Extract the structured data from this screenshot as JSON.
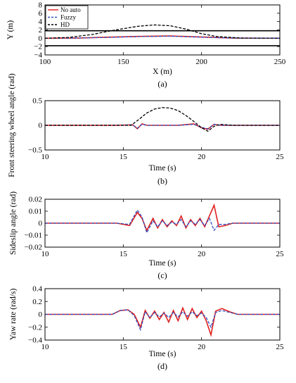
{
  "chart_data": [
    {
      "type": "line",
      "caption": "(a)",
      "xlabel": "X (m)",
      "ylabel": "Y (m)",
      "xlim": [
        100,
        250
      ],
      "ylim": [
        -4,
        8
      ],
      "xticks": [
        100,
        150,
        200,
        250
      ],
      "yticks": [
        8,
        6,
        4,
        2,
        0,
        -2,
        -4
      ],
      "yticklabels": [
        "8",
        "6",
        "4",
        "2",
        "0",
        "−2",
        "−4"
      ],
      "legend": {
        "placement": "top-left",
        "entries": [
          "No auto",
          "Fuzzy",
          "HD"
        ]
      },
      "hlines": [
        1.8,
        -1.8
      ],
      "series": [
        {
          "name": "No auto",
          "color": "#e02020",
          "dash": "solid",
          "x": [
            100,
            120,
            140,
            160,
            180,
            200,
            220,
            250
          ],
          "y": [
            0,
            0.05,
            0.25,
            0.45,
            0.55,
            0.3,
            0.05,
            0
          ]
        },
        {
          "name": "Fuzzy",
          "color": "#3050c0",
          "dash": "dashed",
          "x": [
            100,
            120,
            140,
            160,
            180,
            200,
            220,
            250
          ],
          "y": [
            0,
            0.05,
            0.2,
            0.4,
            0.5,
            0.25,
            0.05,
            0
          ]
        },
        {
          "name": "HD",
          "color": "#000000",
          "dash": "dashed",
          "x": [
            100,
            115,
            130,
            145,
            160,
            170,
            180,
            190,
            200,
            210,
            225,
            250
          ],
          "y": [
            0,
            0.2,
            0.9,
            2.0,
            2.9,
            3.2,
            3.0,
            2.2,
            1.1,
            0.4,
            0.05,
            0
          ]
        }
      ]
    },
    {
      "type": "line",
      "caption": "(b)",
      "xlabel": "Time (s)",
      "ylabel": "Front steering wheel angle (rad)",
      "xlim": [
        10,
        25
      ],
      "ylim": [
        -0.5,
        0.5
      ],
      "xticks": [
        10,
        15,
        20,
        25
      ],
      "yticks": [
        0.5,
        0,
        -0.5
      ],
      "yticklabels": [
        "0.5",
        "0",
        "−0.5"
      ],
      "series": [
        {
          "name": "No auto",
          "color": "#e02020",
          "dash": "solid",
          "x": [
            10,
            14.5,
            15.6,
            15.9,
            16.2,
            16.5,
            18.5,
            19.5,
            20,
            20.4,
            20.8,
            21.2,
            25
          ],
          "y": [
            0,
            0,
            0.01,
            -0.07,
            0.03,
            0,
            0,
            0.03,
            -0.05,
            -0.08,
            0.02,
            0,
            0
          ]
        },
        {
          "name": "Fuzzy",
          "color": "#3050c0",
          "dash": "dashed",
          "x": [
            10,
            14.5,
            15.6,
            15.9,
            16.2,
            16.5,
            18.5,
            19.5,
            20,
            20.4,
            20.8,
            21.2,
            25
          ],
          "y": [
            0,
            0,
            0.01,
            -0.06,
            0.02,
            0,
            0,
            0.02,
            -0.04,
            -0.07,
            0.02,
            0,
            0
          ]
        },
        {
          "name": "HD",
          "color": "#000000",
          "dash": "dashed",
          "x": [
            10,
            15.5,
            16.0,
            16.5,
            17.0,
            17.5,
            18.0,
            18.5,
            19.0,
            19.5,
            20.0,
            20.4,
            20.8,
            21.2,
            22,
            25
          ],
          "y": [
            0,
            0,
            0.12,
            0.25,
            0.33,
            0.36,
            0.35,
            0.3,
            0.2,
            0.08,
            -0.05,
            -0.12,
            -0.02,
            0.02,
            0,
            0
          ]
        }
      ]
    },
    {
      "type": "line",
      "caption": "(c)",
      "xlabel": "Time (s)",
      "ylabel": "Sideslip angle (rad)",
      "xlim": [
        10,
        25
      ],
      "ylim": [
        -0.02,
        0.02
      ],
      "xticks": [
        10,
        15,
        20,
        25
      ],
      "yticks": [
        0.02,
        0.01,
        0,
        -0.01,
        -0.02
      ],
      "yticklabels": [
        "0.02",
        "0.01",
        "0",
        "−0.01",
        "−0.02"
      ],
      "series": [
        {
          "name": "No auto",
          "color": "#e02020",
          "dash": "solid",
          "x": [
            10,
            14.6,
            15.4,
            15.9,
            16.2,
            16.5,
            16.9,
            17.2,
            17.5,
            17.8,
            18.1,
            18.4,
            18.7,
            19.0,
            19.3,
            19.6,
            19.9,
            20.2,
            20.5,
            20.8,
            21.1,
            21.5,
            22,
            25
          ],
          "y": [
            0,
            0,
            -0.002,
            0.009,
            0.004,
            -0.006,
            0.004,
            -0.004,
            0.003,
            -0.003,
            0.002,
            -0.002,
            0.006,
            -0.004,
            0.003,
            -0.002,
            0.004,
            -0.003,
            0.006,
            0.015,
            -0.003,
            -0.002,
            0,
            0
          ]
        },
        {
          "name": "Fuzzy",
          "color": "#3050c0",
          "dash": "dashed",
          "x": [
            10,
            14.6,
            15.4,
            15.9,
            16.2,
            16.5,
            16.9,
            17.2,
            17.5,
            17.8,
            18.1,
            18.4,
            18.7,
            19.0,
            19.3,
            19.6,
            19.9,
            20.2,
            20.5,
            20.8,
            21.1,
            21.5,
            22,
            25
          ],
          "y": [
            0,
            0,
            -0.001,
            0.011,
            0.005,
            -0.008,
            0.002,
            -0.003,
            0.002,
            -0.002,
            0.001,
            -0.001,
            0.003,
            -0.003,
            0.002,
            -0.001,
            0.003,
            -0.002,
            0.004,
            -0.006,
            -0.001,
            -0.001,
            0,
            0
          ]
        }
      ]
    },
    {
      "type": "line",
      "caption": "(d)",
      "xlabel": "Time (s)",
      "ylabel": "Yaw rate (rad/s)",
      "xlim": [
        10,
        25
      ],
      "ylim": [
        -0.4,
        0.4
      ],
      "xticks": [
        10,
        15,
        20,
        25
      ],
      "yticks": [
        0.4,
        0.2,
        0,
        -0.2,
        -0.4
      ],
      "yticklabels": [
        "0.4",
        "0.2",
        "0",
        "−0.2",
        "−0.4"
      ],
      "series": [
        {
          "name": "No auto",
          "color": "#e02020",
          "dash": "solid",
          "x": [
            10,
            14.3,
            14.8,
            15.3,
            15.7,
            16.1,
            16.4,
            16.7,
            17.0,
            17.3,
            17.6,
            17.9,
            18.2,
            18.5,
            18.8,
            19.1,
            19.4,
            19.7,
            20.0,
            20.3,
            20.6,
            20.9,
            21.3,
            21.8,
            22.3,
            25
          ],
          "y": [
            0,
            0,
            0.06,
            0.07,
            0.0,
            -0.2,
            0.06,
            -0.06,
            0.05,
            -0.08,
            0.03,
            -0.12,
            0.06,
            -0.1,
            0.1,
            -0.08,
            0.09,
            -0.05,
            0.05,
            -0.1,
            -0.32,
            0.05,
            0.09,
            0.04,
            0,
            0
          ]
        },
        {
          "name": "Fuzzy",
          "color": "#3050c0",
          "dash": "dashed",
          "x": [
            10,
            14.3,
            14.8,
            15.3,
            15.7,
            16.1,
            16.4,
            16.7,
            17.0,
            17.3,
            17.6,
            17.9,
            18.2,
            18.5,
            18.8,
            19.1,
            19.4,
            19.7,
            20.0,
            20.3,
            20.6,
            20.9,
            21.3,
            21.8,
            22.3,
            25
          ],
          "y": [
            0,
            0,
            0.06,
            0.07,
            -0.02,
            -0.24,
            0.04,
            -0.05,
            0.03,
            -0.04,
            0.02,
            -0.05,
            0.03,
            -0.04,
            0.04,
            -0.03,
            0.04,
            -0.02,
            0.02,
            -0.05,
            -0.2,
            0.03,
            0.06,
            0.03,
            0,
            0
          ]
        }
      ]
    }
  ]
}
